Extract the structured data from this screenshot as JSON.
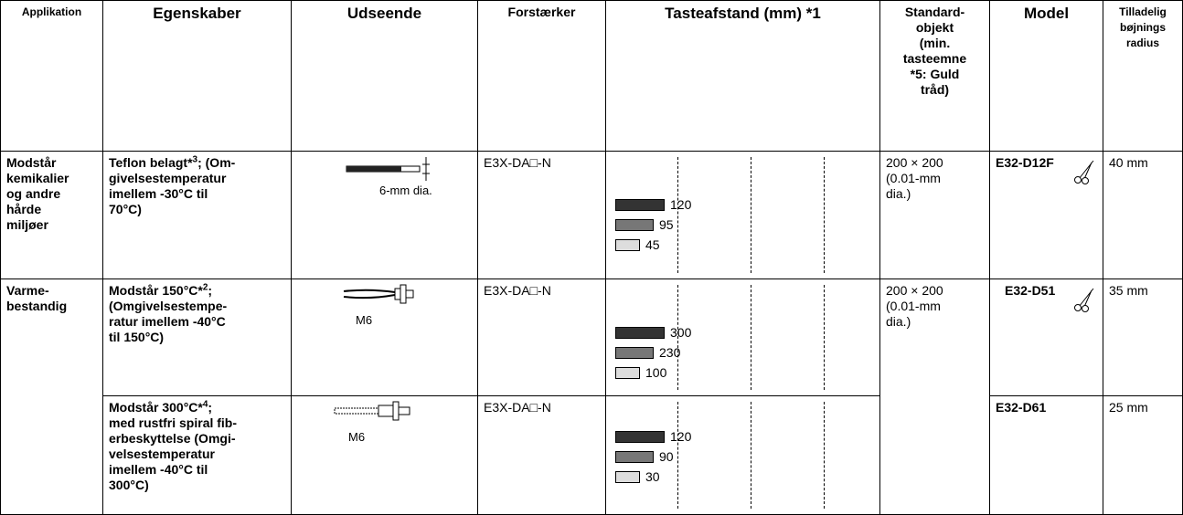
{
  "header": [
    "Applikation",
    "Egenskaber",
    "Udseende",
    "Forstærker",
    "Tasteafstand (mm) *1",
    "Standard-\nobjekt\n(min.\ntasteemne\n*5: Guld\ntråd)",
    "Model",
    "Tilladelig\nbøjnings\nradius"
  ],
  "rows": [
    {
      "application": "Modstår\nkemikalier\nog andre\nhårde\nmiljøer",
      "features": {
        "pre": "Teflon belagt*",
        "sup": "3",
        "post": "; (Om-\ngivelsestemperatur\nimellem -30°C til\n70°C)"
      },
      "appearance_label": "6-mm dia.",
      "amplifier": "E3X-DA□-N",
      "distances": [
        "120",
        "95",
        "45"
      ],
      "standard_object": "200 × 200\n(0.01-mm\ndia.)",
      "model": "E32-D12F",
      "radius": "40 mm"
    },
    {
      "application": "Varme-\nbestandig",
      "features": {
        "pre": "Modstår 150°C*",
        "sup": "2",
        "post": ";\n(Omgivelsestempe-\nratur imellem -40°C\ntil 150°C)"
      },
      "appearance_label": "M6",
      "amplifier": "E3X-DA□-N",
      "distances": [
        "300",
        "230",
        "100"
      ],
      "standard_object": "200 × 200\n(0.01-mm\ndia.)",
      "model": "E32-D51",
      "radius": "35 mm"
    },
    {
      "features": {
        "pre": "Modstår 300°C*",
        "sup": "4",
        "post": ";\nmed rustfri spiral fib-\nerbeskyttelse (Omgi-\nvelsestemperatur\nimellem -40°C til\n300°C)"
      },
      "appearance_label": "M6",
      "amplifier": "E3X-DA□-N",
      "distances": [
        "120",
        "90",
        "30"
      ],
      "model": "E32-D61",
      "radius": "25 mm"
    }
  ]
}
